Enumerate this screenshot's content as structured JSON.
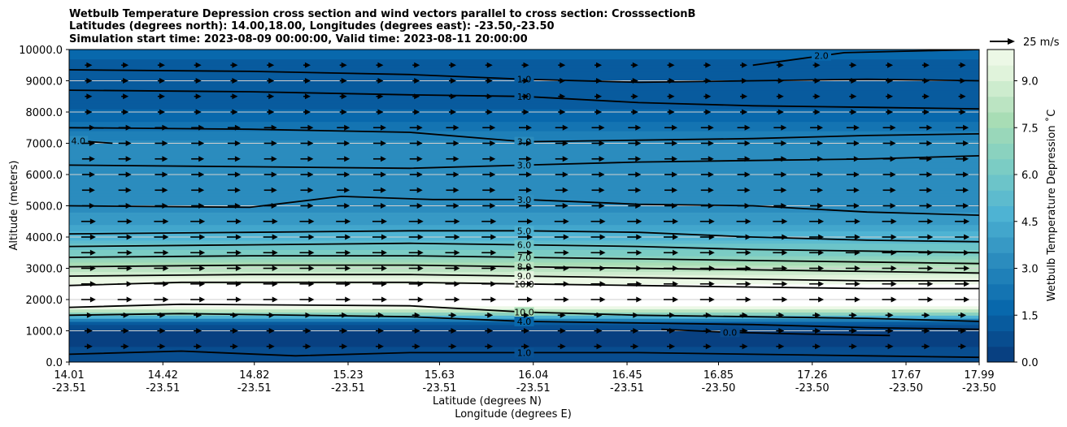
{
  "chart_data": {
    "type": "contour",
    "title_lines": [
      "Wetbulb Temperature Depression cross section and wind vectors parallel to cross section: CrosssectionB",
      "Latitudes (degrees north): 14.00,18.00, Longitudes (degrees east): -23.50,-23.50",
      "Simulation start time: 2023-08-09 00:00:00, Valid time: 2023-08-11 20:00:00"
    ],
    "ylabel": "Altitude (meters)",
    "xlabel_lines": [
      "Latitude (degrees N)",
      "Longitude (degrees E)"
    ],
    "ylim": [
      0,
      10000
    ],
    "y_ticks": [
      0,
      1000,
      2000,
      3000,
      4000,
      5000,
      6000,
      7000,
      8000,
      9000,
      10000
    ],
    "y_tick_labels": [
      "0.0",
      "1000.0",
      "2000.0",
      "3000.0",
      "4000.0",
      "5000.0",
      "6000.0",
      "7000.0",
      "8000.0",
      "9000.0",
      "10000.0"
    ],
    "x_ticks": [
      {
        "lat": "14.01",
        "lon": "-23.51",
        "pos": 14.01
      },
      {
        "lat": "14.42",
        "lon": "-23.51",
        "pos": 14.42
      },
      {
        "lat": "14.82",
        "lon": "-23.51",
        "pos": 14.82
      },
      {
        "lat": "15.23",
        "lon": "-23.51",
        "pos": 15.23
      },
      {
        "lat": "15.63",
        "lon": "-23.51",
        "pos": 15.63
      },
      {
        "lat": "16.04",
        "lon": "-23.51",
        "pos": 16.04
      },
      {
        "lat": "16.45",
        "lon": "-23.51",
        "pos": 16.45
      },
      {
        "lat": "16.85",
        "lon": "-23.50",
        "pos": 16.85
      },
      {
        "lat": "17.26",
        "lon": "-23.50",
        "pos": 17.26
      },
      {
        "lat": "17.67",
        "lon": "-23.50",
        "pos": 17.67
      },
      {
        "lat": "17.99",
        "lon": "-23.50",
        "pos": 17.99
      }
    ],
    "xlim": [
      14.01,
      17.99
    ],
    "grid": "horizontal",
    "colorbar": {
      "label": "Wetbulb Temperature Depression ˚C",
      "range": [
        0,
        10
      ],
      "ticks": [
        0.0,
        1.5,
        3.0,
        4.5,
        6.0,
        7.5,
        9.0
      ],
      "tick_labels": [
        "0.0",
        "1.5",
        "3.0",
        "4.5",
        "6.0",
        "7.5",
        "9.0"
      ]
    },
    "quiver_key": {
      "label": "25 m/s",
      "speed": 25
    },
    "profile": [
      {
        "z": 0,
        "v": 0.8
      },
      {
        "z": 500,
        "v": 0.5
      },
      {
        "z": 1000,
        "v": 0.3
      },
      {
        "z": 1300,
        "v": 1.5
      },
      {
        "z": 1500,
        "v": 6.0
      },
      {
        "z": 1800,
        "v": 10.5
      },
      {
        "z": 2200,
        "v": 11.0
      },
      {
        "z": 2500,
        "v": 10.0
      },
      {
        "z": 2800,
        "v": 9.0
      },
      {
        "z": 3100,
        "v": 7.8
      },
      {
        "z": 3500,
        "v": 6.2
      },
      {
        "z": 4000,
        "v": 4.8
      },
      {
        "z": 4500,
        "v": 3.8
      },
      {
        "z": 5000,
        "v": 3.2
      },
      {
        "z": 6000,
        "v": 3.0
      },
      {
        "z": 7000,
        "v": 3.1
      },
      {
        "z": 7800,
        "v": 1.8
      },
      {
        "z": 8500,
        "v": 1.0
      },
      {
        "z": 9000,
        "v": 1.0
      },
      {
        "z": 9500,
        "v": 1.4
      },
      {
        "z": 10000,
        "v": 1.6
      }
    ],
    "contours": [
      {
        "label": "1.0",
        "label_x": 16.0,
        "points": [
          [
            14.01,
            9350
          ],
          [
            14.8,
            9300
          ],
          [
            15.5,
            9200
          ],
          [
            16.0,
            9050
          ],
          [
            16.5,
            8950
          ],
          [
            17.0,
            9000
          ],
          [
            17.5,
            9050
          ],
          [
            17.99,
            9000
          ]
        ]
      },
      {
        "label": "1.0",
        "label_x": 16.0,
        "points": [
          [
            14.01,
            8700
          ],
          [
            14.8,
            8650
          ],
          [
            15.5,
            8550
          ],
          [
            16.0,
            8500
          ],
          [
            16.5,
            8300
          ],
          [
            17.0,
            8200
          ],
          [
            17.5,
            8150
          ],
          [
            17.99,
            8100
          ]
        ]
      },
      {
        "label": "2.0",
        "label_x": 17.3,
        "points": [
          [
            17.0,
            9500
          ],
          [
            17.4,
            9900
          ],
          [
            17.99,
            10000
          ]
        ]
      },
      {
        "label": "3.0",
        "label_x": 16.0,
        "points": [
          [
            14.01,
            7500
          ],
          [
            14.8,
            7450
          ],
          [
            15.5,
            7350
          ],
          [
            16.0,
            7050
          ],
          [
            16.5,
            7100
          ],
          [
            17.0,
            7150
          ],
          [
            17.5,
            7250
          ],
          [
            17.99,
            7300
          ]
        ]
      },
      {
        "label": "3.0",
        "label_x": 16.0,
        "points": [
          [
            14.01,
            6300
          ],
          [
            14.8,
            6250
          ],
          [
            15.5,
            6200
          ],
          [
            16.0,
            6300
          ],
          [
            16.5,
            6400
          ],
          [
            17.0,
            6450
          ],
          [
            17.5,
            6500
          ],
          [
            17.99,
            6600
          ]
        ]
      },
      {
        "label": "3.0",
        "label_x": 16.0,
        "points": [
          [
            14.01,
            5000
          ],
          [
            14.8,
            4950
          ],
          [
            15.2,
            5300
          ],
          [
            15.6,
            5200
          ],
          [
            16.0,
            5200
          ],
          [
            16.5,
            5050
          ],
          [
            17.0,
            5000
          ],
          [
            17.5,
            4800
          ],
          [
            17.99,
            4700
          ]
        ]
      },
      {
        "label": "4.0",
        "label_x": 14.05,
        "points": [
          [
            14.01,
            7100
          ],
          [
            14.2,
            7000
          ]
        ]
      },
      {
        "label": "5.0",
        "label_x": 16.0,
        "points": [
          [
            14.01,
            4100
          ],
          [
            14.8,
            4150
          ],
          [
            15.5,
            4200
          ],
          [
            16.0,
            4200
          ],
          [
            16.5,
            4150
          ],
          [
            17.0,
            4000
          ],
          [
            17.5,
            3900
          ],
          [
            17.99,
            3850
          ]
        ]
      },
      {
        "label": "6.0",
        "label_x": 16.0,
        "points": [
          [
            14.01,
            3700
          ],
          [
            14.8,
            3750
          ],
          [
            15.5,
            3800
          ],
          [
            16.0,
            3750
          ],
          [
            16.5,
            3700
          ],
          [
            17.0,
            3600
          ],
          [
            17.5,
            3550
          ],
          [
            17.99,
            3500
          ]
        ]
      },
      {
        "label": "7.0",
        "label_x": 16.0,
        "points": [
          [
            14.01,
            3350
          ],
          [
            14.8,
            3400
          ],
          [
            15.5,
            3400
          ],
          [
            16.0,
            3350
          ],
          [
            16.5,
            3300
          ],
          [
            17.0,
            3250
          ],
          [
            17.5,
            3200
          ],
          [
            17.99,
            3150
          ]
        ]
      },
      {
        "label": "8.0",
        "label_x": 16.0,
        "points": [
          [
            14.01,
            3050
          ],
          [
            14.8,
            3100
          ],
          [
            15.5,
            3100
          ],
          [
            16.0,
            3050
          ],
          [
            16.5,
            3000
          ],
          [
            17.0,
            2950
          ],
          [
            17.5,
            2900
          ],
          [
            17.99,
            2850
          ]
        ]
      },
      {
        "label": "9.0",
        "label_x": 16.0,
        "points": [
          [
            14.01,
            2750
          ],
          [
            14.8,
            2800
          ],
          [
            15.5,
            2800
          ],
          [
            16.0,
            2750
          ],
          [
            16.5,
            2700
          ],
          [
            17.0,
            2650
          ],
          [
            17.5,
            2600
          ],
          [
            17.99,
            2600
          ]
        ]
      },
      {
        "label": "10.0",
        "label_x": 16.0,
        "points": [
          [
            14.01,
            2450
          ],
          [
            14.5,
            2550
          ],
          [
            15.5,
            2550
          ],
          [
            16.0,
            2500
          ],
          [
            16.5,
            2450
          ],
          [
            17.0,
            2400
          ],
          [
            17.5,
            2350
          ],
          [
            17.99,
            2350
          ]
        ]
      },
      {
        "label": "10.0",
        "label_x": 16.0,
        "points": [
          [
            14.01,
            1750
          ],
          [
            14.5,
            1850
          ],
          [
            15.5,
            1800
          ],
          [
            16.0,
            1600
          ],
          [
            16.5,
            1500
          ],
          [
            17.0,
            1450
          ],
          [
            17.5,
            1400
          ],
          [
            17.99,
            1300
          ]
        ]
      },
      {
        "label": "4.0",
        "label_x": 16.0,
        "points": [
          [
            14.01,
            1500
          ],
          [
            14.5,
            1550
          ],
          [
            15.5,
            1450
          ],
          [
            16.0,
            1300
          ],
          [
            16.5,
            1250
          ],
          [
            17.0,
            1200
          ],
          [
            17.5,
            1100
          ],
          [
            17.99,
            1050
          ]
        ]
      },
      {
        "label": "0.0",
        "label_x": 16.9,
        "points": [
          [
            16.6,
            1050
          ],
          [
            16.9,
            950
          ],
          [
            17.2,
            900
          ],
          [
            17.6,
            850
          ]
        ]
      },
      {
        "label": "1.0",
        "label_x": 16.0,
        "points": [
          [
            14.01,
            250
          ],
          [
            14.5,
            350
          ],
          [
            15.0,
            200
          ],
          [
            15.5,
            300
          ],
          [
            16.0,
            300
          ],
          [
            16.5,
            300
          ],
          [
            17.0,
            250
          ],
          [
            17.5,
            200
          ],
          [
            17.99,
            150
          ]
        ]
      }
    ]
  }
}
